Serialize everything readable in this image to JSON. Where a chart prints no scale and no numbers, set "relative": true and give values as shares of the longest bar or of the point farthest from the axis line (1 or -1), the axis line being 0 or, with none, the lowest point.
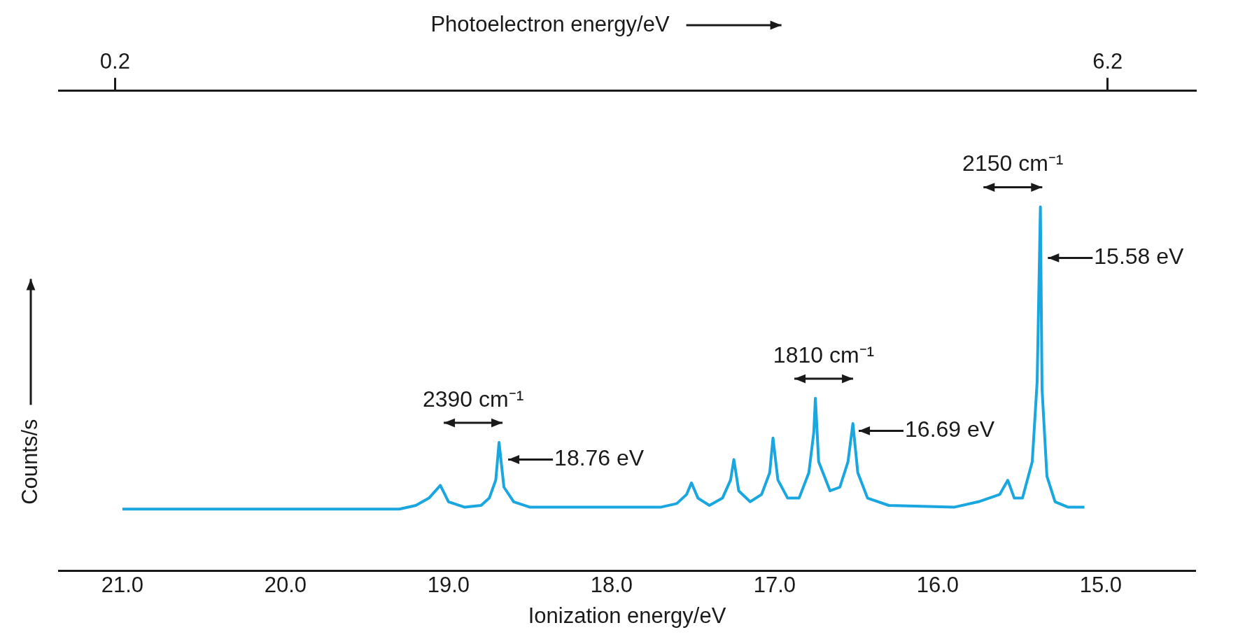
{
  "chart_data": {
    "type": "line",
    "relative": true,
    "xlabel": "Ionization energy/eV",
    "ylabel": "Counts/s",
    "x2label": "Photoelectron energy/eV",
    "xlim": [
      21.39,
      14.42
    ],
    "xticks": [
      {
        "value": 21,
        "label": "21.0"
      },
      {
        "value": 20,
        "label": "20.0"
      },
      {
        "value": 19,
        "label": "19.0"
      },
      {
        "value": 18,
        "label": "18.0"
      },
      {
        "value": 17,
        "label": "17.0"
      },
      {
        "value": 16,
        "label": "16.0"
      },
      {
        "value": 15,
        "label": "15.0"
      }
    ],
    "x2lim": [
      -0.14,
      6.73
    ],
    "x2ticks": [
      0.2,
      6.2
    ],
    "series": [
      {
        "color": "#1aa7e0",
        "x": [
          21.0,
          19.3,
          19.2,
          19.12,
          19.05,
          19.0,
          18.9,
          18.8,
          18.75,
          18.71,
          18.69,
          18.66,
          18.6,
          18.5,
          17.7,
          17.6,
          17.54,
          17.51,
          17.47,
          17.4,
          17.32,
          17.27,
          17.25,
          17.22,
          17.15,
          17.08,
          17.03,
          17.01,
          16.98,
          16.92,
          16.85,
          16.79,
          16.76,
          16.75,
          16.73,
          16.66,
          16.6,
          16.55,
          16.52,
          16.49,
          16.43,
          16.3,
          15.9,
          15.75,
          15.62,
          15.57,
          15.53,
          15.48,
          15.42,
          15.39,
          15.37,
          15.36,
          15.33,
          15.28,
          15.2,
          15.1
        ],
        "values": [
          0.17,
          0.17,
          0.18,
          0.2,
          0.235,
          0.19,
          0.175,
          0.18,
          0.2,
          0.25,
          0.353,
          0.23,
          0.19,
          0.175,
          0.175,
          0.185,
          0.21,
          0.242,
          0.2,
          0.18,
          0.2,
          0.25,
          0.306,
          0.22,
          0.19,
          0.21,
          0.27,
          0.365,
          0.25,
          0.2,
          0.2,
          0.27,
          0.38,
          0.474,
          0.3,
          0.22,
          0.23,
          0.3,
          0.405,
          0.27,
          0.2,
          0.18,
          0.175,
          0.19,
          0.21,
          0.249,
          0.2,
          0.2,
          0.3,
          0.52,
          1.0,
          0.5,
          0.26,
          0.19,
          0.175,
          0.175
        ]
      }
    ],
    "annotations": [
      "2390 cm⁻¹",
      {
        "text": "18.76 eV",
        "x": 18.66,
        "y": 0.306
      },
      "1810 cm⁻¹",
      {
        "text": "16.69 eV",
        "x": 16.51,
        "y": 0.385
      },
      "2150 cm⁻¹",
      {
        "text": "15.58 eV",
        "x": 15.35,
        "y": 0.86
      }
    ]
  }
}
